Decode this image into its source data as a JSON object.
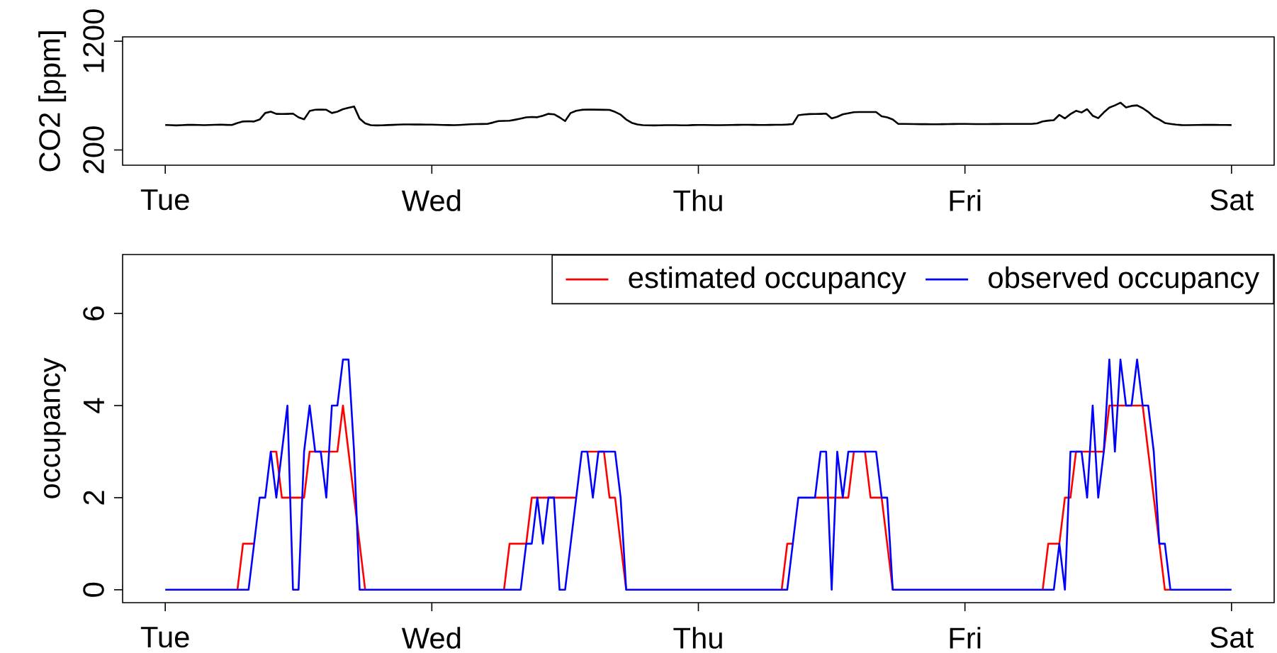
{
  "chart_data": [
    {
      "type": "line",
      "ylabel": "CO2 [ppm]",
      "ylim": [
        60,
        1240
      ],
      "categories": [
        "Tue",
        null,
        null,
        null,
        null,
        null,
        null,
        null,
        null,
        null,
        null,
        null,
        null,
        null,
        null,
        null,
        null,
        null,
        null,
        null,
        null,
        null,
        null,
        null,
        null,
        null,
        null,
        null,
        null,
        null,
        null,
        null,
        null,
        null,
        null,
        null,
        null,
        null,
        null,
        null,
        null,
        null,
        null,
        null,
        null,
        null,
        null,
        null,
        "Wed",
        null,
        null,
        null,
        null,
        null,
        null,
        null,
        null,
        null,
        null,
        null,
        null,
        null,
        null,
        null,
        null,
        null,
        null,
        null,
        null,
        null,
        null,
        null,
        null,
        null,
        null,
        null,
        null,
        null,
        null,
        null,
        null,
        null,
        null,
        null,
        null,
        null,
        null,
        null,
        null,
        null,
        null,
        null,
        null,
        null,
        null,
        null,
        "Thu",
        null,
        null,
        null,
        null,
        null,
        null,
        null,
        null,
        null,
        null,
        null,
        null,
        null,
        null,
        null,
        null,
        null,
        null,
        null,
        null,
        null,
        null,
        null,
        null,
        null,
        null,
        null,
        null,
        null,
        null,
        null,
        null,
        null,
        null,
        null,
        null,
        null,
        null,
        null,
        null,
        null,
        null,
        null,
        null,
        null,
        null,
        null,
        "Fri",
        null,
        null,
        null,
        null,
        null,
        null,
        null,
        null,
        null,
        null,
        null,
        null,
        null,
        null,
        null,
        null,
        null,
        null,
        null,
        null,
        null,
        null,
        null,
        null,
        null,
        null,
        null,
        null,
        null,
        null,
        null,
        null,
        null,
        null,
        null,
        null,
        null,
        null,
        null,
        null,
        null,
        null,
        null,
        null,
        null,
        null,
        null,
        "Sat"
      ],
      "yticks": [
        200,
        1200
      ],
      "series": [
        {
          "color": "#000000",
          "values": [
            430,
            428,
            426,
            428,
            431,
            432,
            430,
            428,
            430,
            432,
            433,
            431,
            430,
            448,
            462,
            464,
            462,
            480,
            540,
            552,
            532,
            531,
            532,
            534,
            500,
            482,
            558,
            570,
            572,
            570,
            540,
            552,
            575,
            588,
            600,
            488,
            445,
            428,
            426,
            427,
            429,
            431,
            433,
            435,
            435,
            434,
            434,
            433,
            433,
            432,
            430,
            429,
            428,
            430,
            433,
            436,
            438,
            439,
            440,
            452,
            466,
            467,
            469,
            478,
            488,
            500,
            503,
            501,
            515,
            532,
            528,
            500,
            466,
            540,
            560,
            569,
            572,
            571,
            570,
            569,
            568,
            550,
            525,
            480,
            450,
            435,
            428,
            427,
            426,
            427,
            428,
            428,
            428,
            427,
            427,
            429,
            430,
            430,
            429,
            428,
            428,
            429,
            430,
            431,
            432,
            432,
            431,
            430,
            430,
            431,
            432,
            432,
            434,
            438,
            520,
            526,
            530,
            531,
            532,
            534,
            490,
            505,
            528,
            538,
            547,
            549,
            549,
            549,
            549,
            510,
            500,
            480,
            440,
            440,
            439,
            438,
            437,
            437,
            436,
            436,
            437,
            438,
            439,
            440,
            440,
            439,
            438,
            438,
            438,
            439,
            439,
            440,
            440,
            440,
            440,
            440,
            440,
            445,
            462,
            470,
            474,
            523,
            490,
            530,
            560,
            545,
            575,
            515,
            493,
            545,
            590,
            610,
            635,
            592,
            605,
            610,
            585,
            550,
            505,
            480,
            448,
            440,
            433,
            429,
            428,
            429,
            430,
            431,
            432,
            431,
            430,
            430,
            429
          ]
        }
      ]
    },
    {
      "type": "line",
      "ylabel": "occupancy",
      "ylim": [
        -0.28,
        7.28
      ],
      "legend": "top right",
      "categories": [
        "Tue",
        null,
        null,
        null,
        null,
        null,
        null,
        null,
        null,
        null,
        null,
        null,
        null,
        null,
        null,
        null,
        null,
        null,
        null,
        null,
        null,
        null,
        null,
        null,
        null,
        null,
        null,
        null,
        null,
        null,
        null,
        null,
        null,
        null,
        null,
        null,
        null,
        null,
        null,
        null,
        null,
        null,
        null,
        null,
        null,
        null,
        null,
        null,
        "Wed",
        null,
        null,
        null,
        null,
        null,
        null,
        null,
        null,
        null,
        null,
        null,
        null,
        null,
        null,
        null,
        null,
        null,
        null,
        null,
        null,
        null,
        null,
        null,
        null,
        null,
        null,
        null,
        null,
        null,
        null,
        null,
        null,
        null,
        null,
        null,
        null,
        null,
        null,
        null,
        null,
        null,
        null,
        null,
        null,
        null,
        null,
        null,
        "Thu",
        null,
        null,
        null,
        null,
        null,
        null,
        null,
        null,
        null,
        null,
        null,
        null,
        null,
        null,
        null,
        null,
        null,
        null,
        null,
        null,
        null,
        null,
        null,
        null,
        null,
        null,
        null,
        null,
        null,
        null,
        null,
        null,
        null,
        null,
        null,
        null,
        null,
        null,
        null,
        null,
        null,
        null,
        null,
        null,
        null,
        null,
        null,
        "Fri",
        null,
        null,
        null,
        null,
        null,
        null,
        null,
        null,
        null,
        null,
        null,
        null,
        null,
        null,
        null,
        null,
        null,
        null,
        null,
        null,
        null,
        null,
        null,
        null,
        null,
        null,
        null,
        null,
        null,
        null,
        null,
        null,
        null,
        null,
        null,
        null,
        null,
        null,
        null,
        null,
        null,
        null,
        null,
        null,
        null,
        null,
        null,
        "Sat"
      ],
      "yticks": [
        0,
        2,
        4,
        6
      ],
      "series": [
        {
          "name": "estimated occupancy",
          "color": "#ff0000",
          "values": [
            null,
            null,
            null,
            null,
            null,
            null,
            null,
            null,
            null,
            null,
            null,
            null,
            null,
            0,
            1,
            1,
            1,
            null,
            null,
            3,
            3,
            2,
            2,
            2,
            2,
            2,
            3,
            3,
            3,
            3,
            3,
            3,
            4,
            3,
            2,
            1,
            0,
            null,
            null,
            null,
            null,
            null,
            null,
            null,
            null,
            null,
            null,
            null,
            null,
            null,
            null,
            null,
            null,
            null,
            null,
            null,
            null,
            null,
            null,
            null,
            null,
            0,
            1,
            1,
            1,
            1,
            2,
            2,
            2,
            2,
            2,
            2,
            2,
            2,
            2,
            null,
            3,
            3,
            3,
            3,
            2,
            2,
            1,
            0,
            null,
            null,
            null,
            null,
            null,
            null,
            null,
            null,
            null,
            null,
            null,
            null,
            null,
            null,
            null,
            null,
            null,
            null,
            null,
            null,
            null,
            null,
            null,
            null,
            null,
            null,
            null,
            0,
            1,
            1,
            null,
            null,
            null,
            2,
            2,
            2,
            2,
            2,
            2,
            2,
            3,
            null,
            3,
            2,
            2,
            2,
            1,
            0,
            null,
            null,
            null,
            null,
            null,
            null,
            null,
            null,
            null,
            null,
            null,
            null,
            null,
            null,
            null,
            null,
            null,
            null,
            null,
            null,
            null,
            null,
            null,
            null,
            null,
            null,
            0,
            1,
            1,
            1,
            2,
            2,
            3,
            3,
            3,
            3,
            3,
            3,
            4,
            4,
            4,
            4,
            4,
            4,
            4,
            3,
            2,
            1,
            0,
            0,
            null,
            null,
            null,
            null,
            null,
            null,
            null,
            null,
            null,
            null,
            null
          ]
        },
        {
          "name": "observed occupancy",
          "color": "#0000ff",
          "values": [
            0,
            0,
            0,
            0,
            0,
            0,
            0,
            0,
            0,
            0,
            0,
            0,
            0,
            0,
            0,
            0,
            1,
            2,
            2,
            3,
            2,
            3,
            4,
            0,
            0,
            3,
            4,
            3,
            3,
            2,
            4,
            4,
            5,
            5,
            3,
            0,
            0,
            0,
            0,
            0,
            0,
            0,
            0,
            0,
            0,
            0,
            0,
            0,
            0,
            0,
            0,
            0,
            0,
            0,
            0,
            0,
            0,
            0,
            0,
            0,
            0,
            0,
            0,
            0,
            0,
            1,
            1,
            2,
            1,
            2,
            2,
            0,
            0,
            1,
            2,
            3,
            3,
            2,
            3,
            3,
            3,
            3,
            2,
            0,
            0,
            0,
            0,
            0,
            0,
            0,
            0,
            0,
            0,
            0,
            0,
            0,
            0,
            0,
            0,
            0,
            0,
            0,
            0,
            0,
            0,
            0,
            0,
            0,
            0,
            0,
            0,
            0,
            0,
            1,
            2,
            2,
            2,
            2,
            3,
            3,
            0,
            3,
            2,
            3,
            3,
            3,
            3,
            3,
            3,
            2,
            2,
            0,
            0,
            0,
            0,
            0,
            0,
            0,
            0,
            0,
            0,
            0,
            0,
            0,
            0,
            0,
            0,
            0,
            0,
            0,
            0,
            0,
            0,
            0,
            0,
            0,
            0,
            0,
            0,
            0,
            0,
            1,
            0,
            3,
            3,
            3,
            2,
            4,
            2,
            3,
            5,
            3,
            5,
            4,
            4,
            5,
            4,
            4,
            3,
            1,
            1,
            0,
            0,
            0,
            0,
            0,
            0,
            0,
            0,
            0,
            0,
            0,
            0
          ]
        }
      ]
    }
  ]
}
